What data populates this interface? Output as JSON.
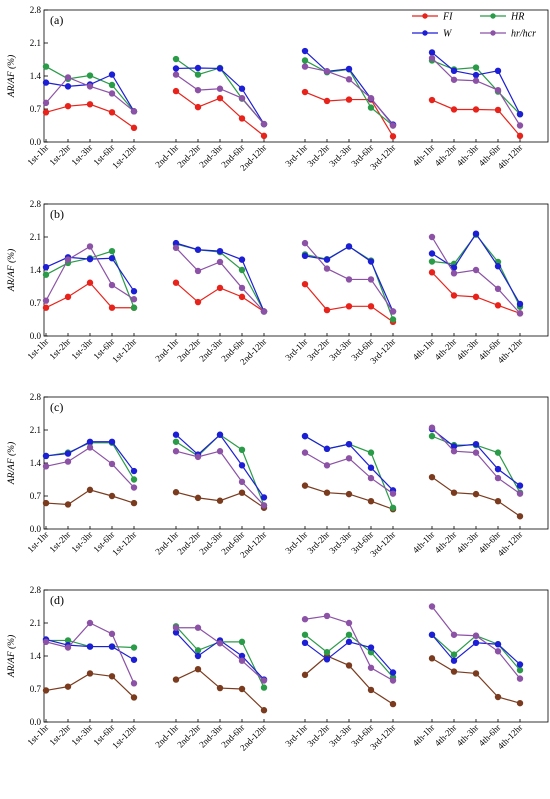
{
  "legend": [
    {
      "key": "FI",
      "label": "FI",
      "color": "#e8231b"
    },
    {
      "key": "HR",
      "label": "HR",
      "color": "#2a9b48"
    },
    {
      "key": "W",
      "label": "W",
      "color": "#1d1fd6"
    },
    {
      "key": "hr",
      "label": "hr/hcr",
      "color": "#8c52a6"
    }
  ],
  "chart_data": [
    {
      "type": "line",
      "panel_label": "(a)",
      "ylabel": "AR/AF (%)",
      "ylim": [
        0.0,
        2.8
      ],
      "yticks": [
        "0.0",
        "0.7",
        "1.4",
        "2.1",
        "2.8"
      ],
      "groups": [
        [
          "1st-1hr",
          "1st-2hr",
          "1st-3hr",
          "1st-6hr",
          "1st-12hr"
        ],
        [
          "2nd-1hr",
          "2nd-2hr",
          "2nd-3hr",
          "2nd-6hr",
          "2nd-12hr"
        ],
        [
          "3rd-1hr",
          "3rd-2hr",
          "3rd-3hr",
          "3rd-6hr",
          "3rd-12hr"
        ],
        [
          "4th-1hr",
          "4th-2hr",
          "4th-3hr",
          "4th-6hr",
          "4th-12hr"
        ]
      ],
      "series": [
        {
          "key": "FI",
          "color": "#e8231b",
          "values": [
            [
              0.63,
              0.76,
              0.8,
              0.63,
              0.3
            ],
            [
              1.08,
              0.74,
              0.93,
              0.5,
              0.13
            ],
            [
              1.06,
              0.87,
              0.9,
              0.9,
              0.12
            ],
            [
              0.89,
              0.69,
              0.69,
              0.68,
              0.13
            ]
          ]
        },
        {
          "key": "HR",
          "color": "#2a9b48",
          "values": [
            [
              1.6,
              1.34,
              1.41,
              1.21,
              0.65
            ],
            [
              1.76,
              1.43,
              1.57,
              0.92,
              0.38
            ],
            [
              1.73,
              1.48,
              1.54,
              0.73,
              0.35
            ],
            [
              1.73,
              1.54,
              1.58,
              1.07,
              0.59
            ]
          ]
        },
        {
          "key": "W",
          "color": "#1d1fd6",
          "values": [
            [
              1.26,
              1.18,
              1.22,
              1.43,
              0.65
            ],
            [
              1.56,
              1.57,
              1.56,
              1.13,
              0.38
            ],
            [
              1.93,
              1.5,
              1.55,
              0.92,
              0.37
            ],
            [
              1.9,
              1.51,
              1.42,
              1.51,
              0.59
            ]
          ]
        },
        {
          "key": "hr",
          "color": "#8c52a6",
          "values": [
            [
              0.83,
              1.37,
              1.18,
              1.03,
              0.65
            ],
            [
              1.43,
              1.1,
              1.13,
              0.93,
              0.38
            ],
            [
              1.6,
              1.5,
              1.33,
              0.93,
              0.35
            ],
            [
              1.78,
              1.32,
              1.3,
              1.1,
              0.35
            ]
          ]
        }
      ]
    },
    {
      "type": "line",
      "panel_label": "(b)",
      "ylabel": "AR/AF (%)",
      "ylim": [
        0.0,
        2.8
      ],
      "yticks": [
        "0.0",
        "0.7",
        "1.4",
        "2.1",
        "2.8"
      ],
      "groups": [
        [
          "1st-1hr",
          "1st-2hr",
          "1st-3hr",
          "1st-6hr",
          "1st-12hr"
        ],
        [
          "2nd-1hr",
          "2nd-2hr",
          "2nd-3hr",
          "2nd-6hr",
          "2nd-12hr"
        ],
        [
          "3rd-1hr",
          "3rd-2hr",
          "3rd-3hr",
          "3rd-6hr",
          "3rd-12hr"
        ],
        [
          "4th-1hr",
          "4th-2hr",
          "4th-3hr",
          "4th-6hr",
          "4th-12hr"
        ]
      ],
      "series": [
        {
          "key": "FI",
          "color": "#e8231b",
          "values": [
            [
              0.6,
              0.83,
              1.13,
              0.6,
              0.6
            ],
            [
              1.13,
              0.72,
              1.02,
              0.83,
              0.52
            ],
            [
              1.1,
              0.55,
              0.63,
              0.63,
              0.3
            ],
            [
              1.35,
              0.86,
              0.83,
              0.65,
              0.48
            ]
          ]
        },
        {
          "key": "HR",
          "color": "#2a9b48",
          "values": [
            [
              1.3,
              1.55,
              1.65,
              1.8,
              0.6
            ],
            [
              1.95,
              1.83,
              1.78,
              1.4,
              0.52
            ],
            [
              1.73,
              1.63,
              1.9,
              1.6,
              0.35
            ],
            [
              1.58,
              1.53,
              2.15,
              1.57,
              0.62
            ]
          ]
        },
        {
          "key": "W",
          "color": "#1d1fd6",
          "values": [
            [
              1.46,
              1.67,
              1.63,
              1.65,
              0.95
            ],
            [
              1.97,
              1.83,
              1.8,
              1.62,
              0.52
            ],
            [
              1.7,
              1.62,
              1.9,
              1.58,
              0.52
            ],
            [
              1.75,
              1.45,
              2.17,
              1.48,
              0.68
            ]
          ]
        },
        {
          "key": "hr",
          "color": "#8c52a6",
          "values": [
            [
              0.75,
              1.62,
              1.9,
              1.08,
              0.78
            ],
            [
              1.87,
              1.38,
              1.57,
              1.02,
              0.52
            ],
            [
              1.97,
              1.43,
              1.2,
              1.2,
              0.52
            ],
            [
              2.1,
              1.33,
              1.4,
              1.0,
              0.48
            ]
          ]
        }
      ]
    },
    {
      "type": "line",
      "panel_label": "(c)",
      "ylabel": "AR/AF (%)",
      "ylim": [
        0.0,
        2.8
      ],
      "yticks": [
        "0.0",
        "0.7",
        "1.4",
        "2.1",
        "2.8"
      ],
      "groups": [
        [
          "1st-1hr",
          "1st-2hr",
          "1st-3hr",
          "1st-6hr",
          "1st-12hr"
        ],
        [
          "2nd-1hr",
          "2nd-2hr",
          "2nd-3hr",
          "2nd-6hr",
          "2nd-12hr"
        ],
        [
          "3rd-1hr",
          "3rd-2hr",
          "3rd-3hr",
          "3rd-6hr",
          "3rd-12hr"
        ],
        [
          "4th-1hr",
          "4th-2hr",
          "4th-3hr",
          "4th-6hr",
          "4th-12hr"
        ]
      ],
      "series": [
        {
          "key": "FI",
          "color": "#7a3b1e",
          "values": [
            [
              0.55,
              0.52,
              0.83,
              0.7,
              0.55
            ],
            [
              0.78,
              0.66,
              0.6,
              0.77,
              0.45
            ],
            [
              0.92,
              0.77,
              0.74,
              0.59,
              0.42
            ],
            [
              1.1,
              0.77,
              0.74,
              0.59,
              0.27
            ]
          ]
        },
        {
          "key": "HR",
          "color": "#2a9b48",
          "values": [
            [
              1.55,
              1.62,
              1.83,
              1.83,
              1.05
            ],
            [
              1.85,
              1.55,
              2.0,
              1.68,
              0.5
            ],
            [
              1.97,
              1.7,
              1.8,
              1.62,
              0.45
            ],
            [
              1.97,
              1.78,
              1.78,
              1.62,
              0.77
            ]
          ]
        },
        {
          "key": "W",
          "color": "#1d1fd6",
          "values": [
            [
              1.55,
              1.6,
              1.85,
              1.85,
              1.23
            ],
            [
              2.0,
              1.58,
              2.0,
              1.35,
              0.67
            ],
            [
              1.97,
              1.7,
              1.8,
              1.3,
              0.82
            ],
            [
              2.12,
              1.75,
              1.8,
              1.27,
              0.92
            ]
          ]
        },
        {
          "key": "hr",
          "color": "#8c52a6",
          "values": [
            [
              1.33,
              1.43,
              1.73,
              1.38,
              0.88
            ],
            [
              1.65,
              1.53,
              1.65,
              1.0,
              0.5
            ],
            [
              1.62,
              1.35,
              1.5,
              1.08,
              0.75
            ],
            [
              2.15,
              1.65,
              1.62,
              1.08,
              0.75
            ]
          ]
        }
      ]
    },
    {
      "type": "line",
      "panel_label": "(d)",
      "ylabel": "AR/AF (%)",
      "ylim": [
        0.0,
        2.8
      ],
      "yticks": [
        "0.0",
        "0.7",
        "1.4",
        "2.1",
        "2.8"
      ],
      "groups": [
        [
          "1st-1hr",
          "1st-2hr",
          "1st-3hr",
          "1st-6hr",
          "1st-12hr"
        ],
        [
          "2nd-1hr",
          "2nd-2hr",
          "2nd-3hr",
          "2nd-6hr",
          "2nd-12hr"
        ],
        [
          "3rd-1hr",
          "3rd-2hr",
          "3rd-3hr",
          "3rd-6hr",
          "3rd-12hr"
        ],
        [
          "4th-1hr",
          "4th-2hr",
          "4th-3hr",
          "4th-6hr",
          "4th-12hr"
        ]
      ],
      "series": [
        {
          "key": "FI",
          "color": "#7a3b1e",
          "values": [
            [
              0.67,
              0.75,
              1.03,
              0.97,
              0.52
            ],
            [
              0.9,
              1.12,
              0.72,
              0.7,
              0.25
            ],
            [
              1.0,
              1.4,
              1.2,
              0.68,
              0.38
            ],
            [
              1.35,
              1.07,
              1.03,
              0.53,
              0.4
            ]
          ]
        },
        {
          "key": "HR",
          "color": "#2a9b48",
          "values": [
            [
              1.73,
              1.73,
              1.6,
              1.6,
              1.58
            ],
            [
              2.03,
              1.52,
              1.7,
              1.7,
              0.73
            ],
            [
              1.85,
              1.48,
              1.85,
              1.48,
              0.95
            ],
            [
              1.85,
              1.43,
              1.83,
              1.65,
              1.1
            ]
          ]
        },
        {
          "key": "W",
          "color": "#1d1fd6",
          "values": [
            [
              1.75,
              1.63,
              1.6,
              1.6,
              1.32
            ],
            [
              1.9,
              1.4,
              1.73,
              1.4,
              0.9
            ],
            [
              1.68,
              1.33,
              1.7,
              1.58,
              1.05
            ],
            [
              1.85,
              1.3,
              1.68,
              1.65,
              1.22
            ]
          ]
        },
        {
          "key": "hr",
          "color": "#8c52a6",
          "values": [
            [
              1.7,
              1.58,
              2.1,
              1.87,
              0.82
            ],
            [
              2.0,
              2.0,
              1.67,
              1.3,
              0.88
            ],
            [
              2.18,
              2.25,
              2.1,
              1.15,
              0.88
            ],
            [
              2.45,
              1.85,
              1.83,
              1.5,
              0.92
            ]
          ]
        }
      ]
    }
  ]
}
